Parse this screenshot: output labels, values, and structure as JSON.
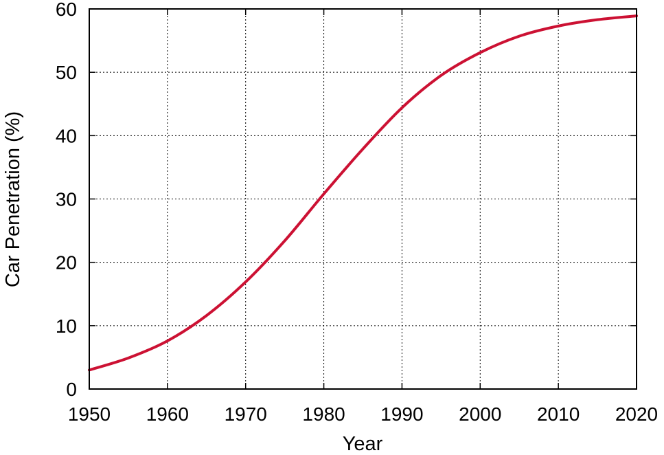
{
  "chart_data": {
    "type": "line",
    "title": "",
    "xlabel": "Year",
    "ylabel": "Car Penetration (%)",
    "xlim": [
      1950,
      2020
    ],
    "ylim": [
      0,
      60
    ],
    "grid": true,
    "x_ticks": [
      1950,
      1960,
      1970,
      1980,
      1990,
      2000,
      2010,
      2020
    ],
    "y_ticks": [
      0,
      10,
      20,
      30,
      40,
      50,
      60
    ],
    "series": [
      {
        "color": "#cc1133",
        "x": [
          1950,
          1955,
          1960,
          1965,
          1970,
          1975,
          1980,
          1985,
          1990,
          1995,
          2000,
          2005,
          2010,
          2015,
          2020
        ],
        "y": [
          3.0,
          4.9,
          7.6,
          11.6,
          16.9,
          23.4,
          30.8,
          37.9,
          44.4,
          49.5,
          53.1,
          55.7,
          57.3,
          58.3,
          58.9
        ]
      }
    ]
  }
}
